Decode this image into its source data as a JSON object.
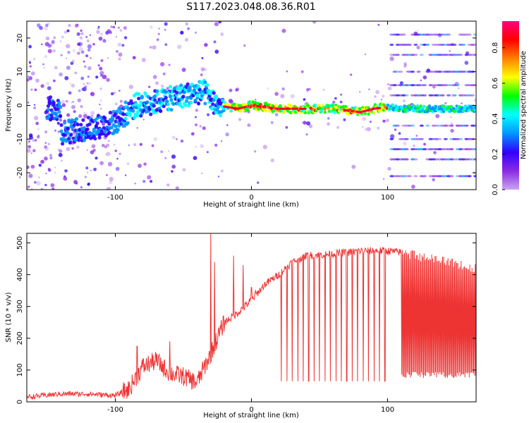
{
  "title": "S117.2023.048.08.36.R01",
  "chart_data": [
    {
      "type": "heatmap",
      "xlabel": "Height of straight line (km)",
      "ylabel": "Frequency (Hz)",
      "xlim": [
        -165,
        165
      ],
      "ylim": [
        -25,
        25
      ],
      "xticks": [
        -100,
        0,
        100
      ],
      "yticks": [
        -20,
        -10,
        0,
        10,
        20
      ],
      "colorbar": {
        "label": "Normalized spectral amplitude",
        "range": [
          0.0,
          0.95
        ],
        "ticks": [
          0.0,
          0.2,
          0.4,
          0.6,
          0.8
        ],
        "colormap": [
          "#c8a6f2",
          "#8a2be2",
          "#3000ff",
          "#0096ff",
          "#00ffff",
          "#00ff00",
          "#ffff00",
          "#ff8000",
          "#ff0000",
          "#ff0080"
        ]
      },
      "ridge": {
        "description_free": true,
        "points": [
          [
            -140,
            -8
          ],
          [
            -120,
            -7
          ],
          [
            -100,
            -5
          ],
          [
            -85,
            0
          ],
          [
            -70,
            1
          ],
          [
            -50,
            3
          ],
          [
            -35,
            4
          ],
          [
            -25,
            0
          ],
          [
            -10,
            -1
          ],
          [
            0,
            0
          ],
          [
            20,
            -1
          ],
          [
            40,
            -1
          ],
          [
            60,
            -1
          ],
          [
            80,
            -2
          ],
          [
            90,
            -1
          ],
          [
            100,
            -0.5
          ],
          [
            110,
            -1
          ],
          [
            165,
            -1
          ]
        ]
      },
      "harmonic_lines_hz": [
        -21,
        -16,
        -13,
        -10,
        -6,
        -1,
        3,
        6,
        10,
        15,
        18,
        21
      ]
    },
    {
      "type": "line",
      "xlabel": "Height of straight line (km)",
      "ylabel": "SNR (10 * v/v)",
      "xlim": [
        -165,
        165
      ],
      "ylim": [
        0,
        530
      ],
      "xticks": [
        -100,
        0,
        100
      ],
      "yticks": [
        0,
        100,
        200,
        300,
        400,
        500
      ],
      "color": "#ee3333",
      "envelope": [
        [
          -165,
          15
        ],
        [
          -140,
          25
        ],
        [
          -120,
          25
        ],
        [
          -100,
          20
        ],
        [
          -90,
          40
        ],
        [
          -80,
          110
        ],
        [
          -70,
          130
        ],
        [
          -60,
          90
        ],
        [
          -50,
          80
        ],
        [
          -40,
          60
        ],
        [
          -30,
          150
        ],
        [
          -20,
          250
        ],
        [
          -10,
          280
        ],
        [
          0,
          320
        ],
        [
          10,
          370
        ],
        [
          20,
          400
        ],
        [
          30,
          440
        ],
        [
          40,
          460
        ],
        [
          60,
          465
        ],
        [
          80,
          475
        ],
        [
          100,
          475
        ],
        [
          110,
          470
        ],
        [
          165,
          420
        ]
      ],
      "spikes": [
        [
          -84,
          175
        ],
        [
          -60,
          190
        ],
        [
          -30,
          530
        ],
        [
          -27,
          440
        ],
        [
          -13,
          460
        ],
        [
          -6,
          430
        ],
        [
          0,
          360
        ],
        [
          3,
          350
        ]
      ],
      "dropouts_km": [
        22,
        26,
        30,
        34,
        38,
        42,
        46,
        50,
        54,
        58,
        62,
        66,
        70,
        74,
        78,
        82,
        86,
        90,
        94,
        98
      ],
      "dropout_floor": 65,
      "dense_region": {
        "x_range": [
          110,
          165
        ],
        "low": 85,
        "high": 440
      }
    }
  ]
}
